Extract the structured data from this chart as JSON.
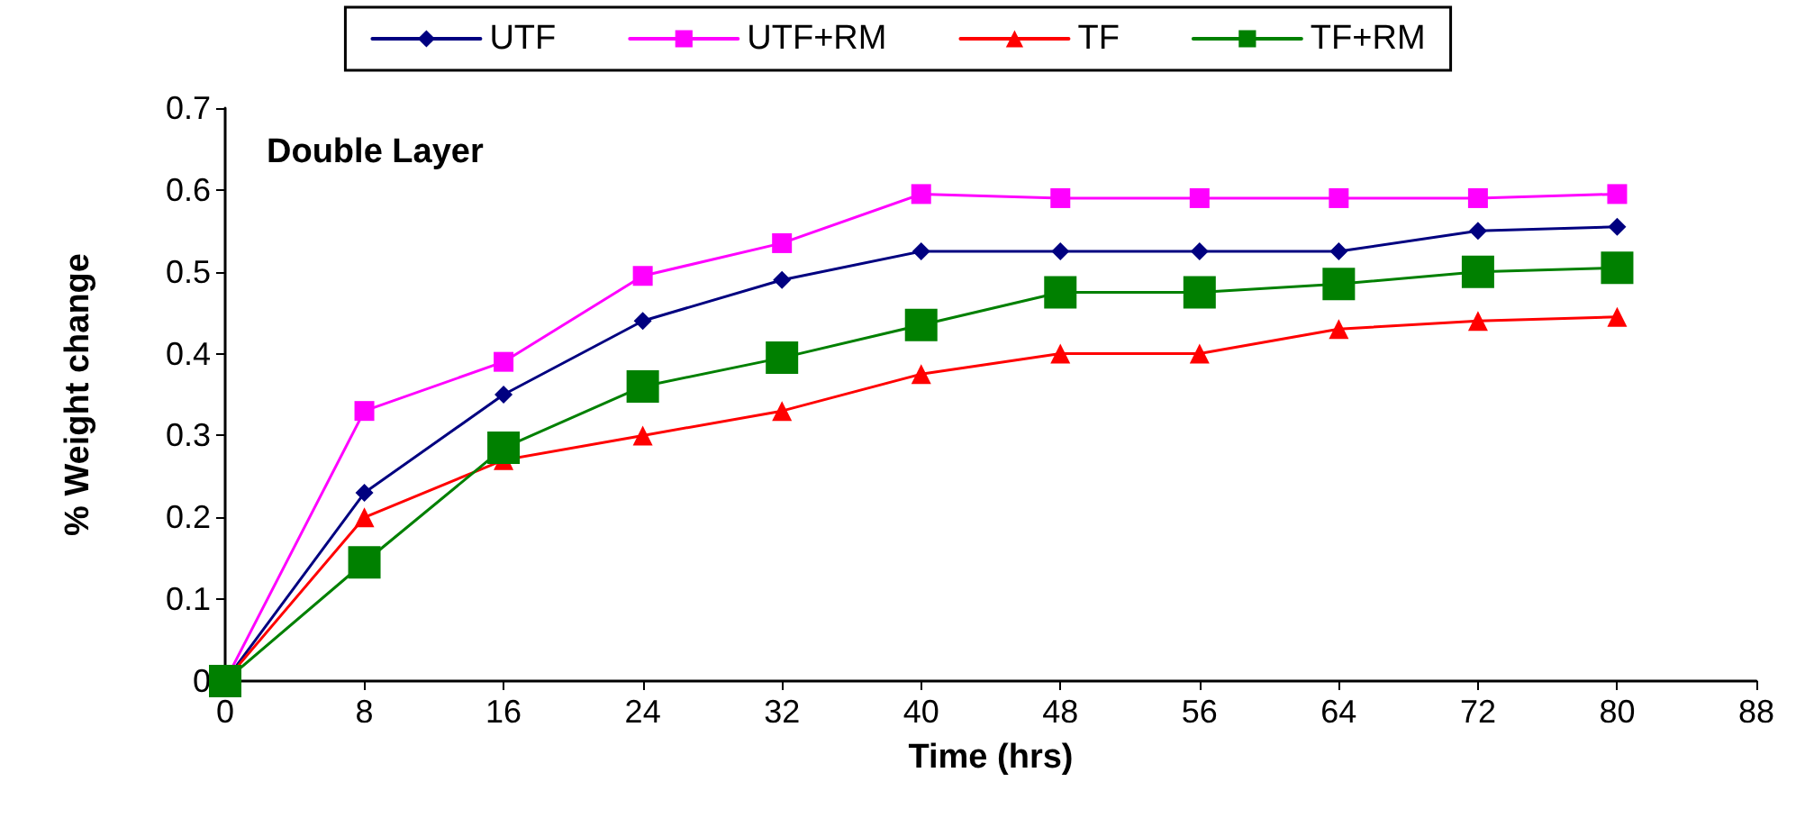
{
  "chart_data": {
    "type": "line",
    "xlabel": "Time (hrs)",
    "ylabel": "% Weight change",
    "annotations": [
      "Double Layer"
    ],
    "x": [
      0,
      8,
      16,
      24,
      32,
      40,
      48,
      56,
      64,
      72,
      80
    ],
    "series": [
      {
        "name": "UTF",
        "color": "#000080",
        "marker": "diamond",
        "values": [
          0,
          0.23,
          0.35,
          0.44,
          0.49,
          0.525,
          0.525,
          0.525,
          0.525,
          0.55,
          0.555
        ]
      },
      {
        "name": "UTF+RM",
        "color": "#ff00ff",
        "marker": "square",
        "values": [
          0,
          0.33,
          0.39,
          0.495,
          0.535,
          0.595,
          0.59,
          0.59,
          0.59,
          0.59,
          0.595
        ]
      },
      {
        "name": "TF",
        "color": "#ff0000",
        "marker": "triangle",
        "values": [
          0,
          0.2,
          0.27,
          0.3,
          0.33,
          0.375,
          0.4,
          0.4,
          0.43,
          0.44,
          0.445
        ]
      },
      {
        "name": "TF+RM",
        "color": "#008000",
        "marker": "square",
        "values": [
          0,
          0.145,
          0.285,
          0.36,
          0.395,
          0.435,
          0.475,
          0.475,
          0.485,
          0.5,
          0.505
        ]
      }
    ],
    "xlim": [
      0,
      88
    ],
    "xticks": [
      0,
      8,
      16,
      24,
      32,
      40,
      48,
      56,
      64,
      72,
      80,
      88
    ],
    "ylim": [
      0,
      0.7
    ],
    "yticks": [
      0,
      0.1,
      0.2,
      0.3,
      0.4,
      0.5,
      0.6,
      0.7
    ],
    "grid": false,
    "legend": "top",
    "line_style": "solid"
  }
}
